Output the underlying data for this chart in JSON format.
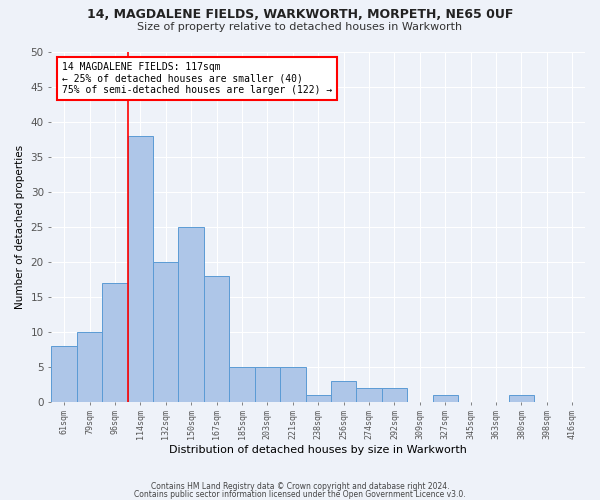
{
  "title1": "14, MAGDALENE FIELDS, WARKWORTH, MORPETH, NE65 0UF",
  "title2": "Size of property relative to detached houses in Warkworth",
  "xlabel": "Distribution of detached houses by size in Warkworth",
  "ylabel": "Number of detached properties",
  "bar_values": [
    8,
    10,
    17,
    38,
    20,
    25,
    18,
    5,
    5,
    5,
    1,
    3,
    2,
    2,
    0,
    1,
    0,
    0,
    1,
    0
  ],
  "bin_labels": [
    "61sqm",
    "79sqm",
    "96sqm",
    "114sqm",
    "132sqm",
    "150sqm",
    "167sqm",
    "185sqm",
    "203sqm",
    "221sqm",
    "238sqm",
    "256sqm",
    "274sqm",
    "292sqm",
    "309sqm",
    "327sqm",
    "345sqm",
    "363sqm",
    "380sqm",
    "398sqm",
    "416sqm"
  ],
  "bar_color": "#aec6e8",
  "bar_edge_color": "#5b9bd5",
  "red_line_bin_index": 3,
  "annotation_text": "14 MAGDALENE FIELDS: 117sqm\n← 25% of detached houses are smaller (40)\n75% of semi-detached houses are larger (122) →",
  "annotation_box_color": "white",
  "annotation_box_edge_color": "red",
  "ylim": [
    0,
    50
  ],
  "yticks": [
    0,
    5,
    10,
    15,
    20,
    25,
    30,
    35,
    40,
    45,
    50
  ],
  "footer1": "Contains HM Land Registry data © Crown copyright and database right 2024.",
  "footer2": "Contains public sector information licensed under the Open Government Licence v3.0.",
  "background_color": "#eef2f9",
  "grid_color": "white"
}
